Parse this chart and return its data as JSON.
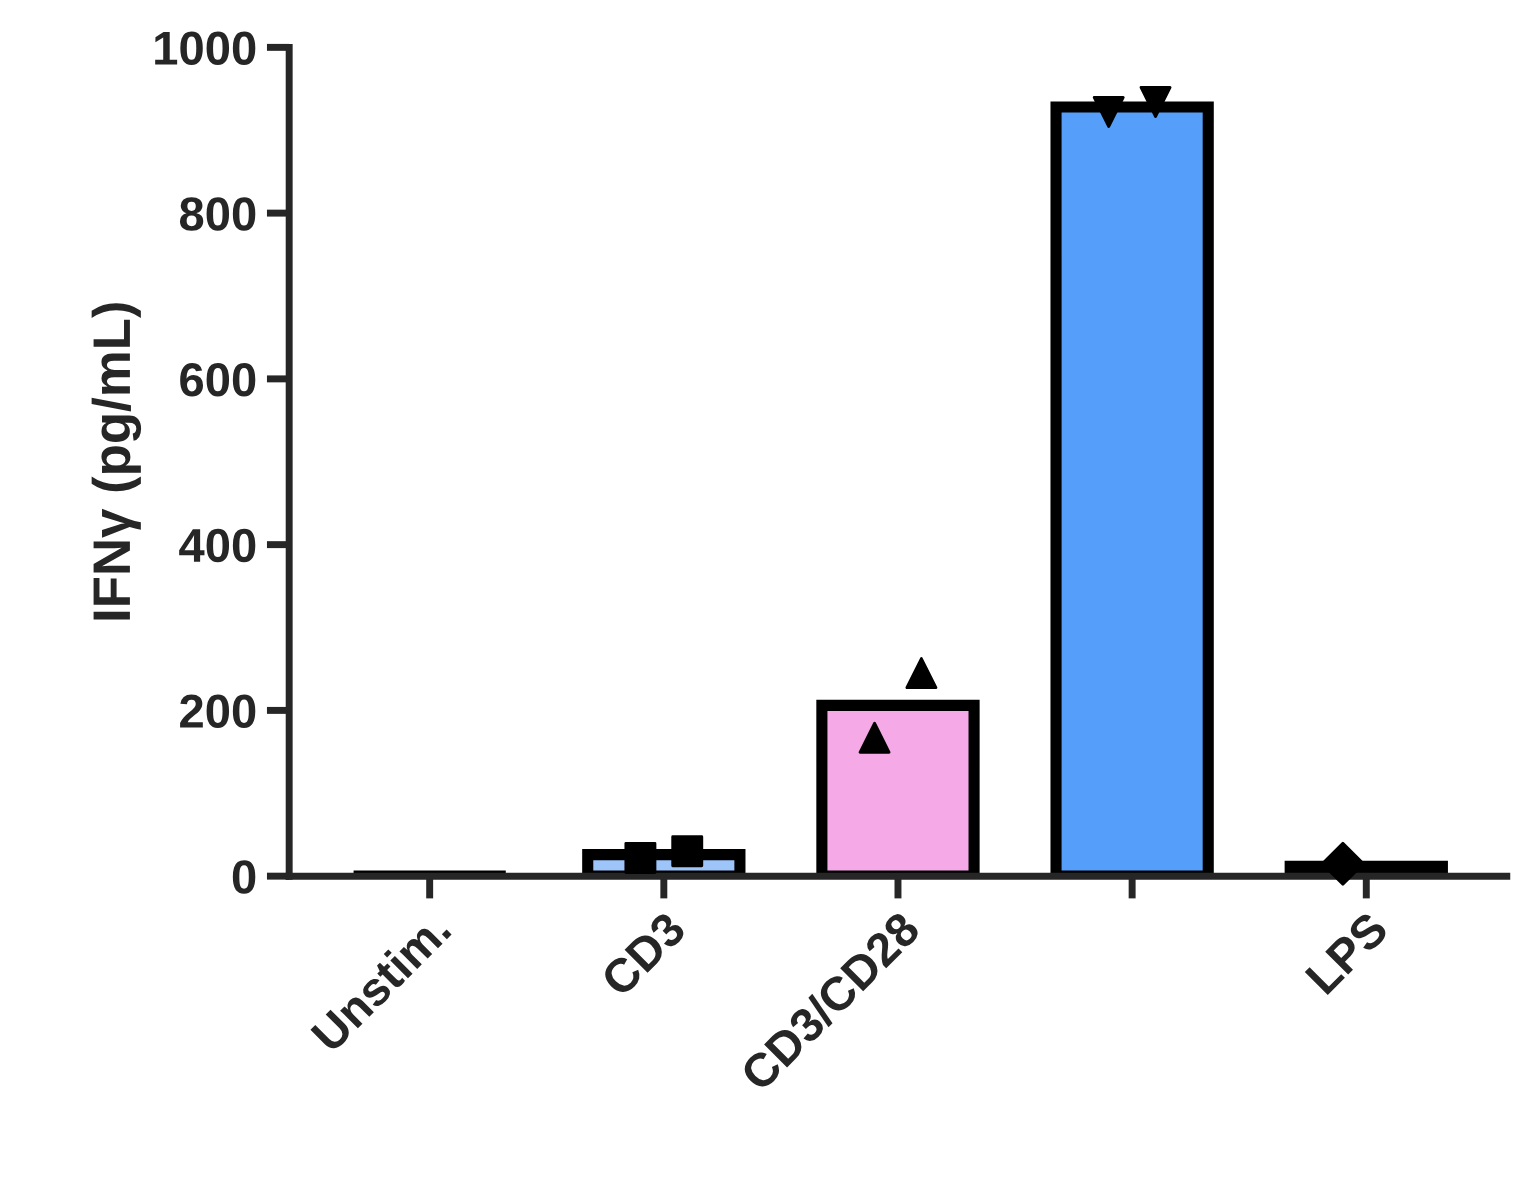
{
  "chart_data": {
    "type": "bar",
    "ylabel": "IFNγ (pg/mL)",
    "categories": [
      "Unstim.",
      "CD3",
      "CD3/CD28",
      null,
      "LPS"
    ],
    "series": [
      {
        "values": [
          0,
          26,
          206,
          928,
          12
        ],
        "colors": [
          "#000000",
          "#9ec5fa",
          "#f5a9e6",
          "#559ffa",
          "#2ca02c"
        ]
      },
      {
        "type": "scatter",
        "color": "#000000",
        "marker": [
          "circle",
          "square",
          "triangle",
          "triangle_down",
          "diamond"
        ],
        "values": [
          null,
          22,
          167,
          922,
          15
        ]
      },
      {
        "type": "scatter",
        "color": "#000000",
        "marker": [
          "circle",
          "square",
          "triangle",
          "triangle_down",
          "diamond"
        ],
        "values": [
          null,
          30,
          245,
          934,
          null
        ]
      }
    ],
    "ylim": [
      0,
      1000
    ],
    "yticks": [
      0,
      200,
      400,
      600,
      800,
      1000
    ],
    "grid": false,
    "legend": false
  }
}
